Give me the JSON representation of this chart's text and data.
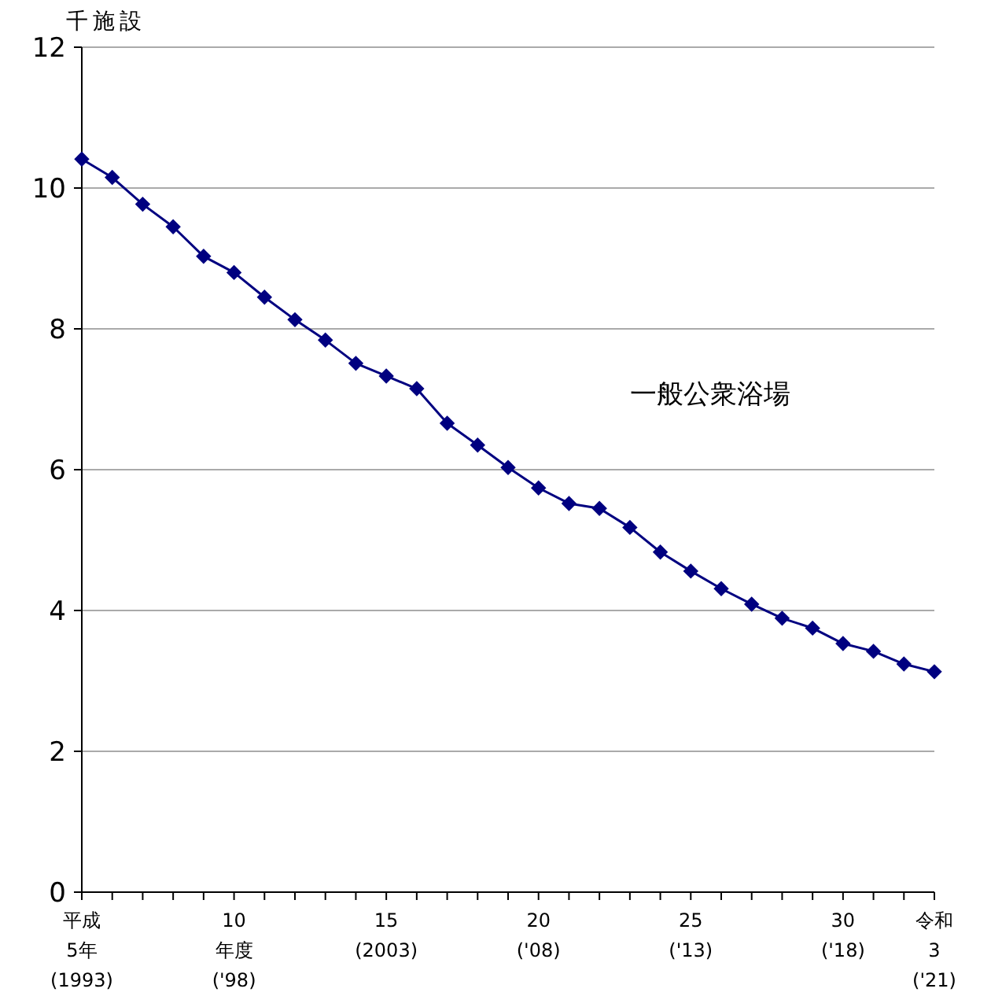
{
  "chart_data": {
    "type": "line",
    "ylabel": "千施設",
    "categories": [
      "平成\n5年\n(1993)",
      null,
      null,
      null,
      null,
      "10\n年度\n('98)",
      null,
      null,
      null,
      null,
      "15\n(2003)",
      null,
      null,
      null,
      null,
      "20\n('08)",
      null,
      null,
      null,
      null,
      "25\n('13)",
      null,
      null,
      null,
      null,
      "30\n('18)",
      null,
      null,
      "令和\n3\n('21)"
    ],
    "series": [
      {
        "name": "一般公衆浴場",
        "color": "#000080",
        "values": [
          10.41,
          10.15,
          9.77,
          9.45,
          9.03,
          8.8,
          8.45,
          8.13,
          7.84,
          7.51,
          7.33,
          7.15,
          6.66,
          6.35,
          6.03,
          5.74,
          5.52,
          5.45,
          5.18,
          4.83,
          4.56,
          4.31,
          4.09,
          3.89,
          3.75,
          3.53,
          3.42,
          3.24,
          3.13
        ]
      }
    ],
    "ylim": [
      0,
      12
    ],
    "yticks": [
      0,
      2,
      4,
      6,
      8,
      10,
      12
    ],
    "grid": "y",
    "marker": "diamond"
  }
}
